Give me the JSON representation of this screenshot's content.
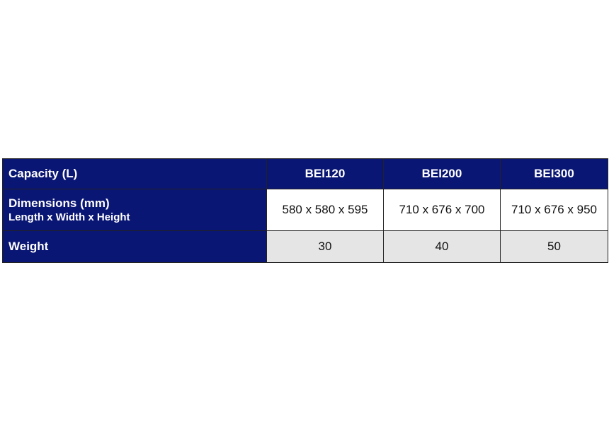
{
  "table": {
    "header": {
      "label": "Capacity (L)",
      "models": [
        "BEI120",
        "BEI200",
        "BEI300"
      ]
    },
    "rows": [
      {
        "label": "Dimensions (mm)",
        "sublabel": "Length x Width x Height",
        "values": [
          "580 x 580 x 595",
          "710 x 676 x 700",
          "710 x 676 x 950"
        ]
      },
      {
        "label": "Weight",
        "values": [
          "30",
          "40",
          "50"
        ]
      }
    ]
  },
  "colors": {
    "header_bg": "#0a1673",
    "row_alt_bg": "#e5e5e5"
  }
}
